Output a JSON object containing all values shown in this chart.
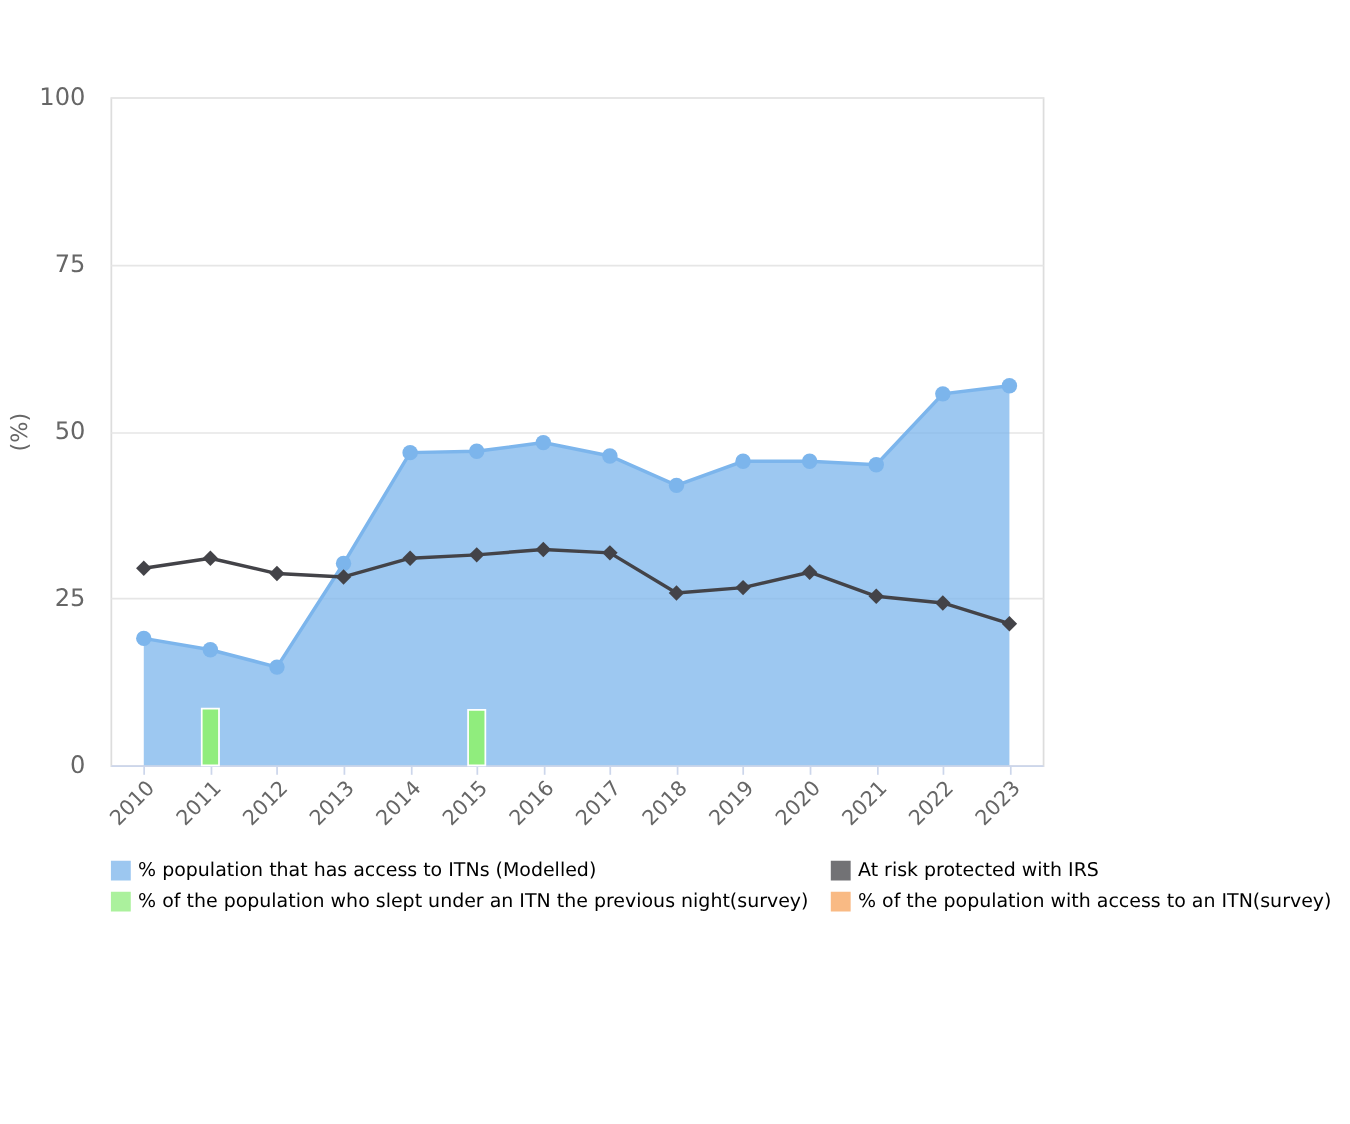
{
  "chart_data": {
    "type": "area",
    "ylabel": "(%)",
    "categories": [
      "2010",
      "2011",
      "2012",
      "2013",
      "2014",
      "2015",
      "2016",
      "2017",
      "2018",
      "2019",
      "2020",
      "2021",
      "2022",
      "2023"
    ],
    "series": [
      {
        "name": "% population that has access to ITNs (Modelled)",
        "color": "#7cb5ec",
        "marker": "circle",
        "values": [
          19,
          17.3,
          14.7,
          30.2,
          46.8,
          47,
          48.3,
          46.3,
          41.9,
          45.5,
          45.5,
          45,
          55.6,
          56.8
        ]
      },
      {
        "name": "At risk protected with IRS",
        "type": "line",
        "color": "#434348",
        "marker": "diamond",
        "values": [
          29.5,
          31,
          28.7,
          28.2,
          31,
          31.5,
          32.3,
          31.8,
          25.8,
          26.6,
          28.9,
          25.3,
          24.3,
          21.2
        ]
      },
      {
        "name": "% of the population who slept under an ITN the previous night(survey)",
        "type": "bar",
        "color": "#90ed7d",
        "values": [
          null,
          8.5,
          null,
          null,
          null,
          8.3,
          null,
          null,
          null,
          null,
          null,
          null,
          null,
          null
        ]
      },
      {
        "name": "% of the population with access to an ITN(survey)",
        "type": "bar",
        "color": "#f7a35c",
        "values": [
          null,
          null,
          null,
          null,
          null,
          null,
          null,
          null,
          null,
          null,
          null,
          null,
          null,
          null
        ]
      }
    ],
    "ylim": [
      0,
      100
    ],
    "yticks": [
      0,
      25,
      50,
      75,
      100
    ],
    "grid": "y",
    "legend": "bottom"
  }
}
